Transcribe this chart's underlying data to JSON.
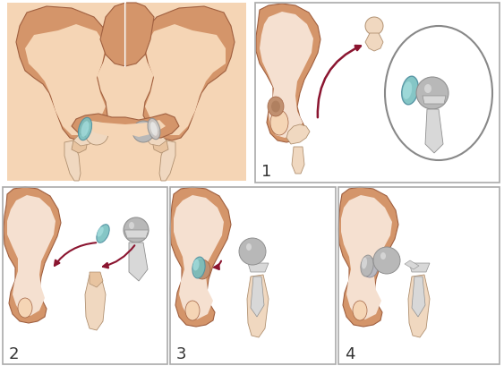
{
  "bg": "#ffffff",
  "bone_dark": "#C8845A",
  "bone_mid": "#D4956A",
  "bone_light": "#E8C4A0",
  "bone_vlight": "#F0D8C0",
  "skin_bg": "#F5D5B5",
  "impl_dark": "#909090",
  "impl_mid": "#B8B8B8",
  "impl_light": "#D8D8D8",
  "cup_teal": "#78C0C0",
  "cup_teal_light": "#A8E0E0",
  "arrow_col": "#8B1530",
  "border_col": "#AAAAAA",
  "text_col": "#333333",
  "num_fs": 13
}
